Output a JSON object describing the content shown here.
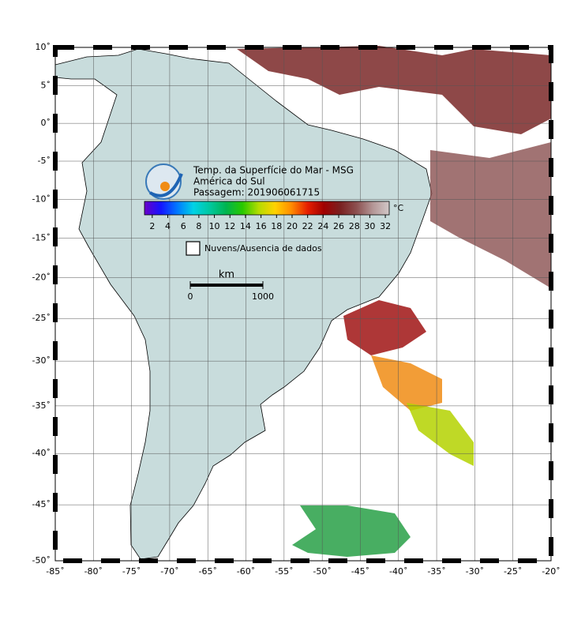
{
  "map": {
    "title_lines": [
      "Temp. da Superfície do Mar - MSG",
      "América do Sul",
      "Passagem: 201906061715"
    ],
    "xlim": [
      -85,
      -20
    ],
    "ylim": [
      -50,
      10
    ],
    "lon_ticks": [
      {
        "value": -85,
        "label": "-85˚"
      },
      {
        "value": -80,
        "label": "-80˚"
      },
      {
        "value": -75,
        "label": "-75˚"
      },
      {
        "value": -70,
        "label": "-70˚"
      },
      {
        "value": -65,
        "label": "-65˚"
      },
      {
        "value": -60,
        "label": "-60˚"
      },
      {
        "value": -55,
        "label": "-55˚"
      },
      {
        "value": -50,
        "label": "-50˚"
      },
      {
        "value": -45,
        "label": "-45˚"
      },
      {
        "value": -40,
        "label": "-40˚"
      },
      {
        "value": -35,
        "label": "-35˚"
      },
      {
        "value": -30,
        "label": "-30˚"
      },
      {
        "value": -25,
        "label": "-25˚"
      },
      {
        "value": -20,
        "label": "-20˚"
      }
    ],
    "lat_ticks": [
      {
        "value": 10,
        "label": "10˚"
      },
      {
        "value": 5,
        "label": "5˚"
      },
      {
        "value": 0,
        "label": "0˚"
      },
      {
        "value": -5,
        "label": "-5˚"
      },
      {
        "value": -10,
        "label": "-10˚"
      },
      {
        "value": -15,
        "label": "-15˚"
      },
      {
        "value": -20,
        "label": "-20˚"
      },
      {
        "value": -25,
        "label": "-25˚"
      },
      {
        "value": -30,
        "label": "-30˚"
      },
      {
        "value": -35,
        "label": "-35˚"
      },
      {
        "value": -40,
        "label": "-40˚"
      },
      {
        "value": -45,
        "label": "-45˚"
      },
      {
        "value": -50,
        "label": "-50˚"
      }
    ],
    "colorbar": {
      "unit": "°C",
      "range": [
        1,
        32.5
      ],
      "ticks": [
        2,
        4,
        6,
        8,
        10,
        12,
        14,
        16,
        18,
        20,
        22,
        24,
        26,
        28,
        30,
        32
      ],
      "colors": [
        "#6a00c8",
        "#1414ff",
        "#0078ff",
        "#00d2e6",
        "#00c8a0",
        "#00b450",
        "#28c800",
        "#b4dc00",
        "#ffd200",
        "#ff8c00",
        "#e61e00",
        "#a00000",
        "#7a2020",
        "#8c5050",
        "#b49696",
        "#d2c8c8"
      ]
    },
    "legend": "Nuvens/Ausencia de dados",
    "scale": {
      "unit": "km",
      "ticks": [
        0,
        1000
      ]
    }
  }
}
